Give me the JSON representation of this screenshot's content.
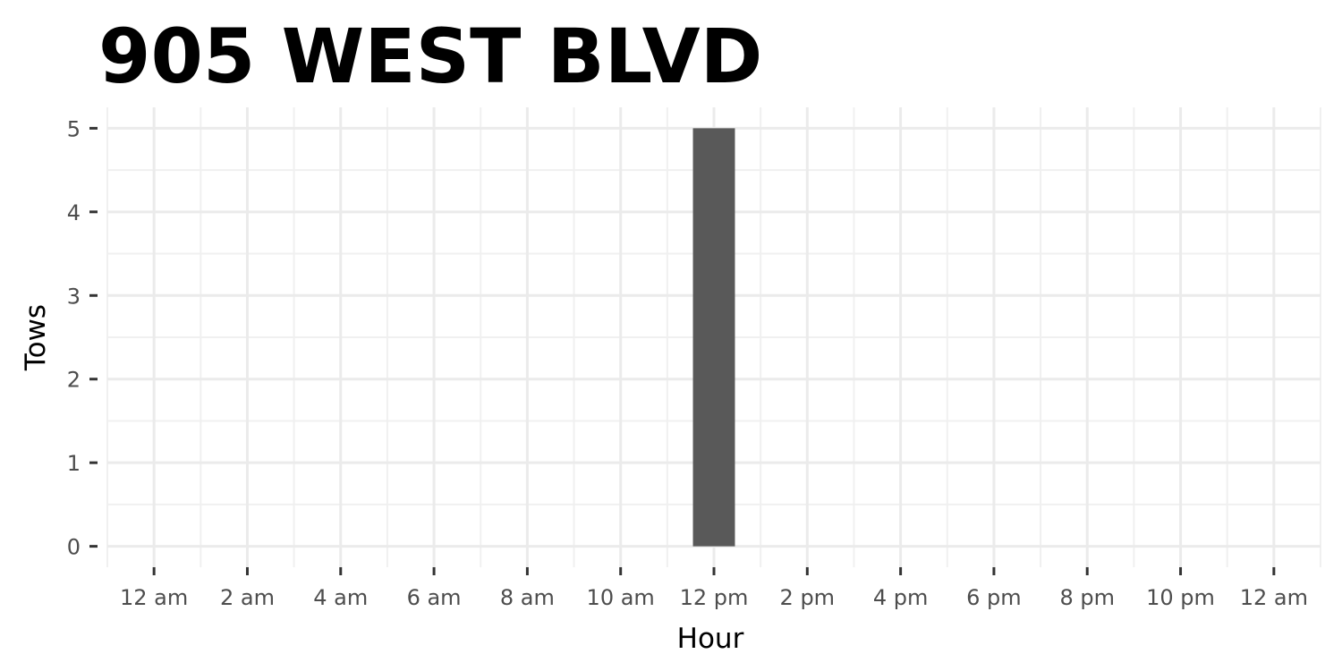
{
  "chart_data": {
    "type": "bar",
    "title": "905 WEST BLVD",
    "xlabel": "Hour",
    "ylabel": "Tows",
    "x_ticks": [
      "12 am",
      "2 am",
      "4 am",
      "6 am",
      "8 am",
      "10 am",
      "12 pm",
      "2 pm",
      "4 pm",
      "6 pm",
      "8 pm",
      "10 pm",
      "12 am"
    ],
    "y_ticks": [
      "0",
      "1",
      "2",
      "3",
      "4",
      "5"
    ],
    "x_unit": "hour of day",
    "xlim": [
      -1,
      25
    ],
    "ylim": [
      -0.25,
      5.25
    ],
    "bars": [
      {
        "hour": 12,
        "value": 5
      }
    ],
    "bar_color": "#595959",
    "grid": true
  }
}
